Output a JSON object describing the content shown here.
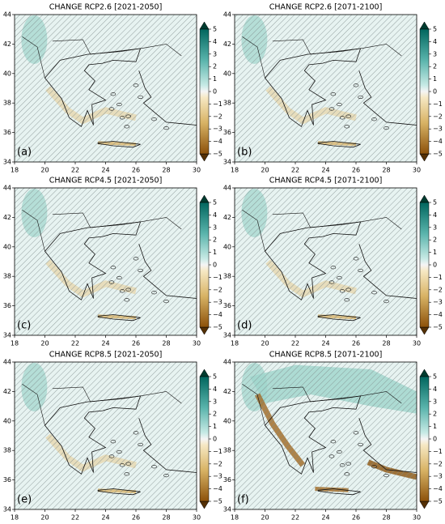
{
  "panels": [
    {
      "title": "CHANGE RCP2.6 [2021-2050]",
      "label": "(a)"
    },
    {
      "title": "CHANGE RCP2.6 [2071-2100]",
      "label": "(b)"
    },
    {
      "title": "CHANGE RCP4.5 [2021-2050]",
      "label": "(c)"
    },
    {
      "title": "CHANGE RCP4.5 [2071-2100]",
      "label": "(d)"
    },
    {
      "title": "CHANGE RCP8.5 [2021-2050]",
      "label": "(e)"
    },
    {
      "title": "CHANGE RCP8.5 [2071-2100]",
      "label": "(f)"
    }
  ],
  "axes": {
    "xlim": [
      18,
      30
    ],
    "ylim": [
      34,
      44
    ],
    "xticks": [
      18,
      20,
      22,
      24,
      26,
      28,
      30
    ],
    "yticks": [
      34,
      36,
      38,
      40,
      42,
      44
    ]
  },
  "colorbar": {
    "lim": [
      -5,
      5
    ],
    "ticks": [
      {
        "value": -5,
        "label": "−5"
      },
      {
        "value": -4,
        "label": "−4"
      },
      {
        "value": -3,
        "label": "−3"
      },
      {
        "value": -2,
        "label": "−2"
      },
      {
        "value": -1,
        "label": "−1"
      },
      0,
      1,
      2,
      3,
      4,
      5
    ]
  }
}
